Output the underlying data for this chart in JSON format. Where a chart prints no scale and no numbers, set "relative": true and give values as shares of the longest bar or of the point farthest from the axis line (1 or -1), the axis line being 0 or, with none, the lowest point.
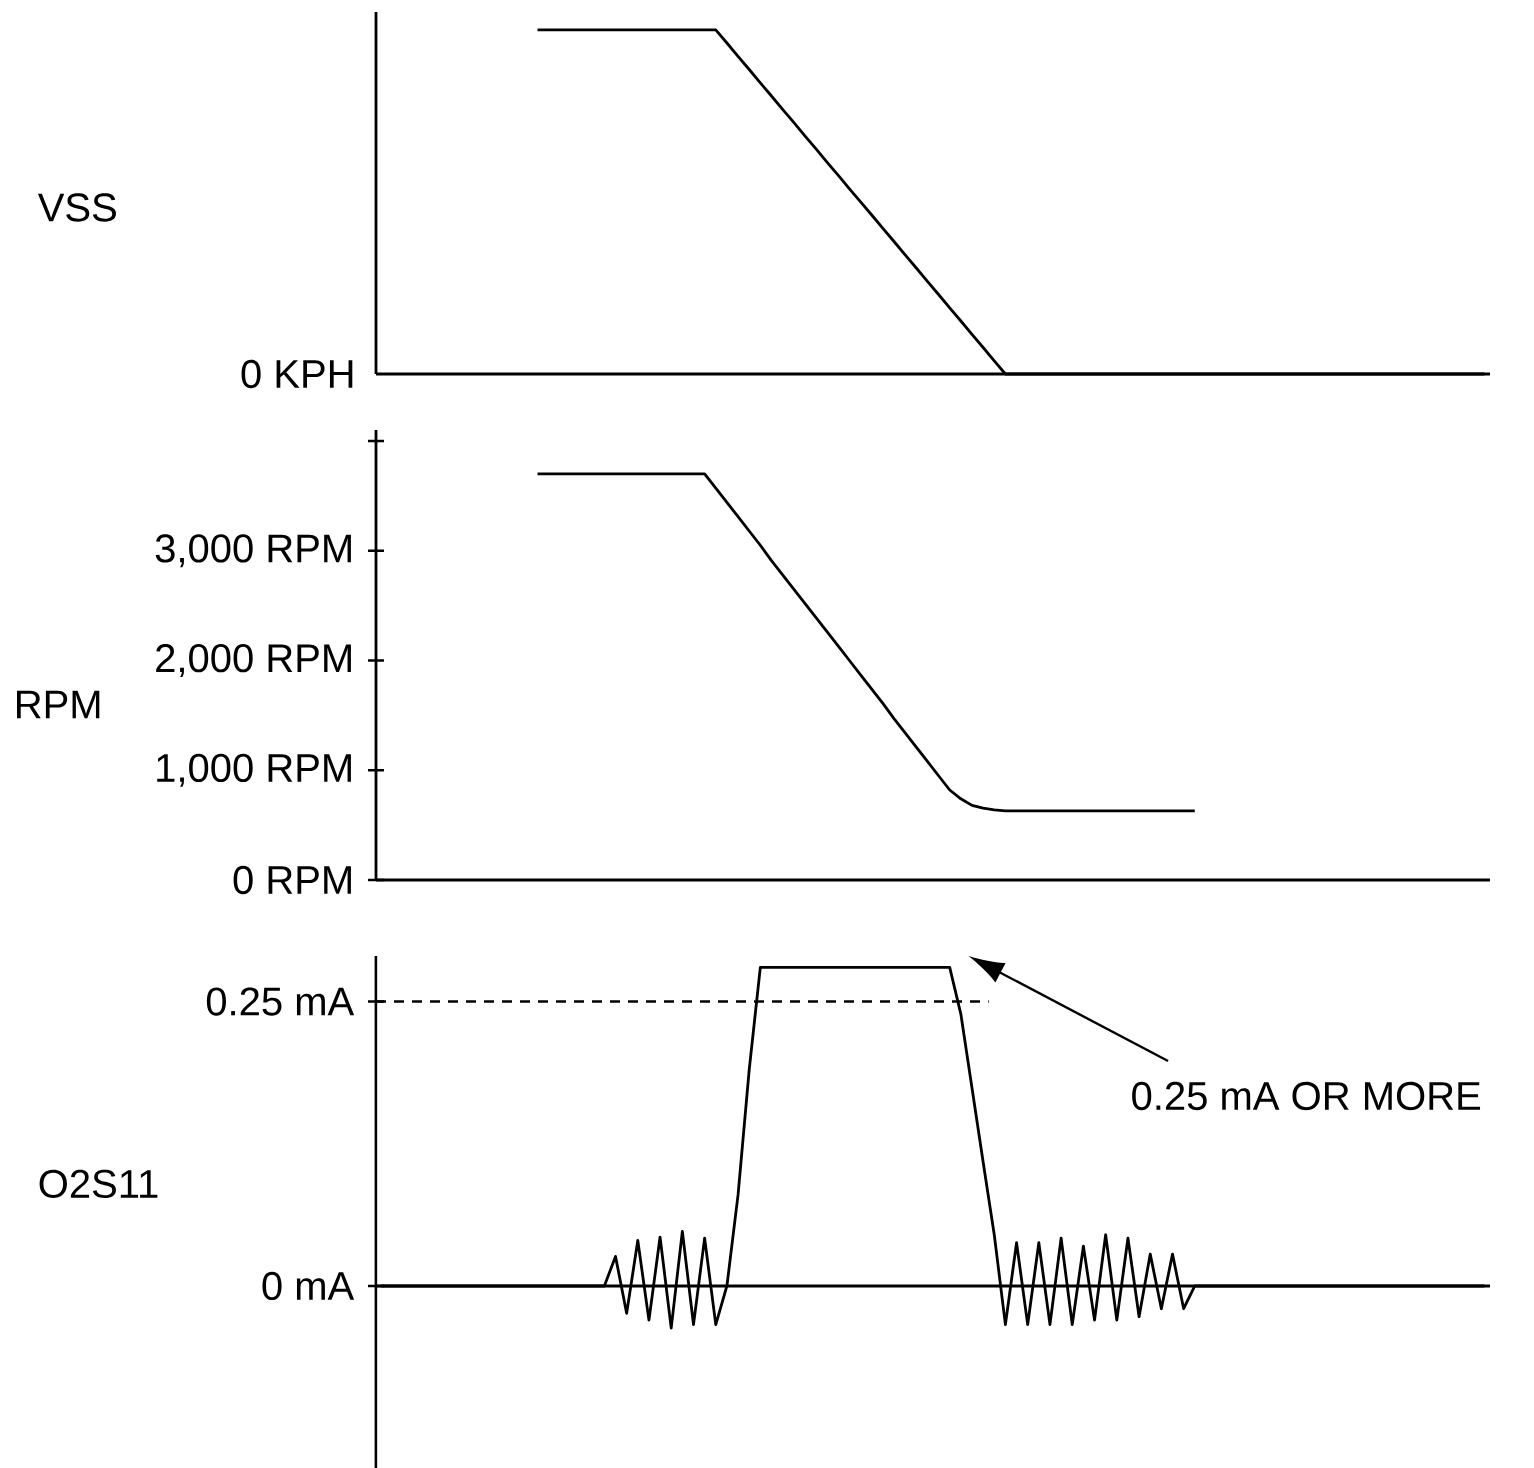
{
  "chart_data": [
    {
      "type": "line",
      "ylabel": "VSS",
      "relative": true,
      "annotations": [
        "0 KPH"
      ],
      "categories": [
        null,
        null,
        null,
        null,
        null,
        null,
        null,
        null,
        null,
        null,
        null,
        null,
        null,
        null,
        null,
        null,
        null,
        null,
        null,
        null,
        null,
        null,
        null,
        null,
        null,
        null,
        null,
        null,
        null,
        null,
        null,
        null,
        null,
        null,
        null,
        null,
        null,
        null,
        null,
        null,
        null,
        null,
        null,
        null,
        null,
        null,
        null,
        null,
        null,
        null,
        null,
        null,
        null,
        null,
        null,
        null,
        null,
        null,
        null,
        null,
        null,
        null,
        null,
        null,
        null,
        null,
        null,
        null,
        null,
        null,
        null,
        null,
        null,
        null,
        null,
        null,
        null,
        null,
        null,
        null,
        null,
        null,
        null,
        null,
        null,
        null,
        null,
        null,
        null,
        null,
        null,
        null,
        null,
        null,
        null,
        null,
        null,
        null,
        null,
        null
      ],
      "series": [
        {
          "color": "#000000",
          "values": [
            null,
            null,
            null,
            null,
            null,
            null,
            null,
            null,
            null,
            null,
            null,
            null,
            null,
            null,
            1,
            1,
            1,
            1,
            1,
            1,
            1,
            1,
            1,
            1,
            1,
            1,
            1,
            1,
            1,
            1,
            1,
            0.962,
            0.923,
            0.885,
            0.846,
            0.808,
            0.769,
            0.731,
            0.692,
            0.654,
            0.615,
            0.577,
            0.538,
            0.5,
            0.462,
            0.423,
            0.385,
            0.346,
            0.308,
            0.269,
            0.231,
            0.192,
            0.154,
            0.115,
            0.077,
            0.038,
            0,
            0,
            0,
            0,
            0,
            0,
            0,
            0,
            0,
            0,
            0,
            0,
            0,
            0,
            0,
            0,
            0,
            0,
            0,
            0,
            0,
            0,
            0,
            0,
            0,
            0,
            0,
            0,
            0,
            0,
            0,
            0,
            0,
            0,
            0,
            0,
            0,
            0,
            0,
            0,
            0,
            0,
            0,
            0
          ]
        }
      ]
    },
    {
      "type": "line",
      "ylabel": "RPM",
      "ylim": [
        0,
        4100
      ],
      "tick_labels": "y",
      "categories": [
        null,
        null,
        null,
        null,
        null,
        null,
        null,
        null,
        null,
        null,
        null,
        null,
        null,
        null,
        null,
        null,
        null,
        null,
        null,
        null,
        null,
        null,
        null,
        null,
        null,
        null,
        null,
        null,
        null,
        null,
        null,
        null,
        null,
        null,
        null,
        null,
        null,
        null,
        null,
        null,
        null,
        null,
        null,
        null,
        null,
        null,
        null,
        null,
        null,
        null,
        null,
        null,
        null,
        null,
        null,
        null,
        null,
        null,
        null,
        null,
        null,
        null,
        null,
        null,
        null,
        null,
        null,
        null,
        null,
        null,
        null,
        null,
        null,
        null,
        null,
        null,
        null,
        null,
        null,
        null,
        null,
        null,
        null,
        null,
        null,
        null,
        null,
        null,
        null,
        null,
        null,
        null,
        null,
        null,
        null,
        null,
        null,
        null,
        null,
        null
      ],
      "yticks": [
        {
          "value": 0,
          "label": "0 RPM"
        },
        {
          "value": 1000,
          "label": "1,000 RPM"
        },
        {
          "value": 2000,
          "label": "2,000 RPM"
        },
        {
          "value": 3000,
          "label": "3,000 RPM"
        },
        {
          "value": 4000,
          "label": null
        }
      ],
      "series": [
        {
          "color": "#000000",
          "values": [
            null,
            null,
            null,
            null,
            null,
            null,
            null,
            null,
            null,
            null,
            null,
            null,
            null,
            null,
            3700,
            3700,
            3700,
            3700,
            3700,
            3700,
            3700,
            3700,
            3700,
            3700,
            3700,
            3700,
            3700,
            3700,
            3700,
            3700,
            3570,
            3440,
            3310,
            3180,
            3050,
            2910,
            2780,
            2650,
            2520,
            2390,
            2260,
            2130,
            2000,
            1870,
            1740,
            1610,
            1470,
            1340,
            1210,
            1080,
            950,
            820,
            740,
            680,
            655,
            640,
            630,
            630,
            630,
            630,
            630,
            630,
            630,
            630,
            630,
            630,
            630,
            630,
            630,
            630,
            630,
            630,
            630,
            630,
            null,
            null,
            null,
            null,
            null,
            null,
            null,
            null,
            null,
            null,
            null,
            null,
            null,
            null,
            null,
            null,
            null,
            null,
            null,
            null,
            null,
            null,
            null,
            null,
            null,
            null
          ]
        }
      ]
    },
    {
      "type": "line",
      "ylabel": "O2S11",
      "ylim": [
        -0.16,
        0.29
      ],
      "tick_labels": "y",
      "categories": [
        null,
        null,
        null,
        null,
        null,
        null,
        null,
        null,
        null,
        null,
        null,
        null,
        null,
        null,
        null,
        null,
        null,
        null,
        null,
        null,
        null,
        null,
        null,
        null,
        null,
        null,
        null,
        null,
        null,
        null,
        null,
        null,
        null,
        null,
        null,
        null,
        null,
        null,
        null,
        null,
        null,
        null,
        null,
        null,
        null,
        null,
        null,
        null,
        null,
        null,
        null,
        null,
        null,
        null,
        null,
        null,
        null,
        null,
        null,
        null,
        null,
        null,
        null,
        null,
        null,
        null,
        null,
        null,
        null,
        null,
        null,
        null,
        null,
        null,
        null,
        null,
        null,
        null,
        null,
        null,
        null,
        null,
        null,
        null,
        null,
        null,
        null,
        null,
        null,
        null,
        null,
        null,
        null,
        null,
        null,
        null,
        null,
        null,
        null,
        null
      ],
      "yticks": [
        {
          "value": 0,
          "label": "0 mA"
        },
        {
          "value": 0.25,
          "label": "0.25 mA"
        }
      ],
      "ref_lines": [
        {
          "axis": "y",
          "value": 0.25,
          "line_style": "dashed"
        }
      ],
      "annotations": [
        "0.25 mA OR MORE"
      ],
      "series": [
        {
          "color": "#000000",
          "values": [
            0,
            0,
            0,
            0,
            0,
            0,
            0,
            0,
            0,
            0,
            0,
            0,
            0,
            0,
            0,
            0,
            0,
            0,
            0,
            0,
            0,
            0.026,
            -0.024,
            0.04,
            -0.03,
            0.043,
            -0.037,
            0.048,
            -0.034,
            0.042,
            -0.034,
            0,
            0.08,
            0.19,
            0.28,
            0.28,
            0.28,
            0.28,
            0.28,
            0.28,
            0.28,
            0.28,
            0.28,
            0.28,
            0.28,
            0.28,
            0.28,
            0.28,
            0.28,
            0.28,
            0.28,
            0.28,
            0.239,
            0.174,
            0.109,
            0.045,
            -0.034,
            0.038,
            -0.034,
            0.038,
            -0.034,
            0.042,
            -0.034,
            0.035,
            -0.03,
            0.045,
            -0.03,
            0.042,
            -0.027,
            0.028,
            -0.02,
            0.028,
            -0.02,
            0,
            0,
            0,
            0,
            0,
            0,
            0,
            0,
            0,
            0,
            0,
            0,
            0,
            0,
            0,
            0,
            0,
            0,
            0,
            0,
            0,
            0,
            0,
            0,
            0,
            0,
            0
          ]
        }
      ]
    }
  ]
}
